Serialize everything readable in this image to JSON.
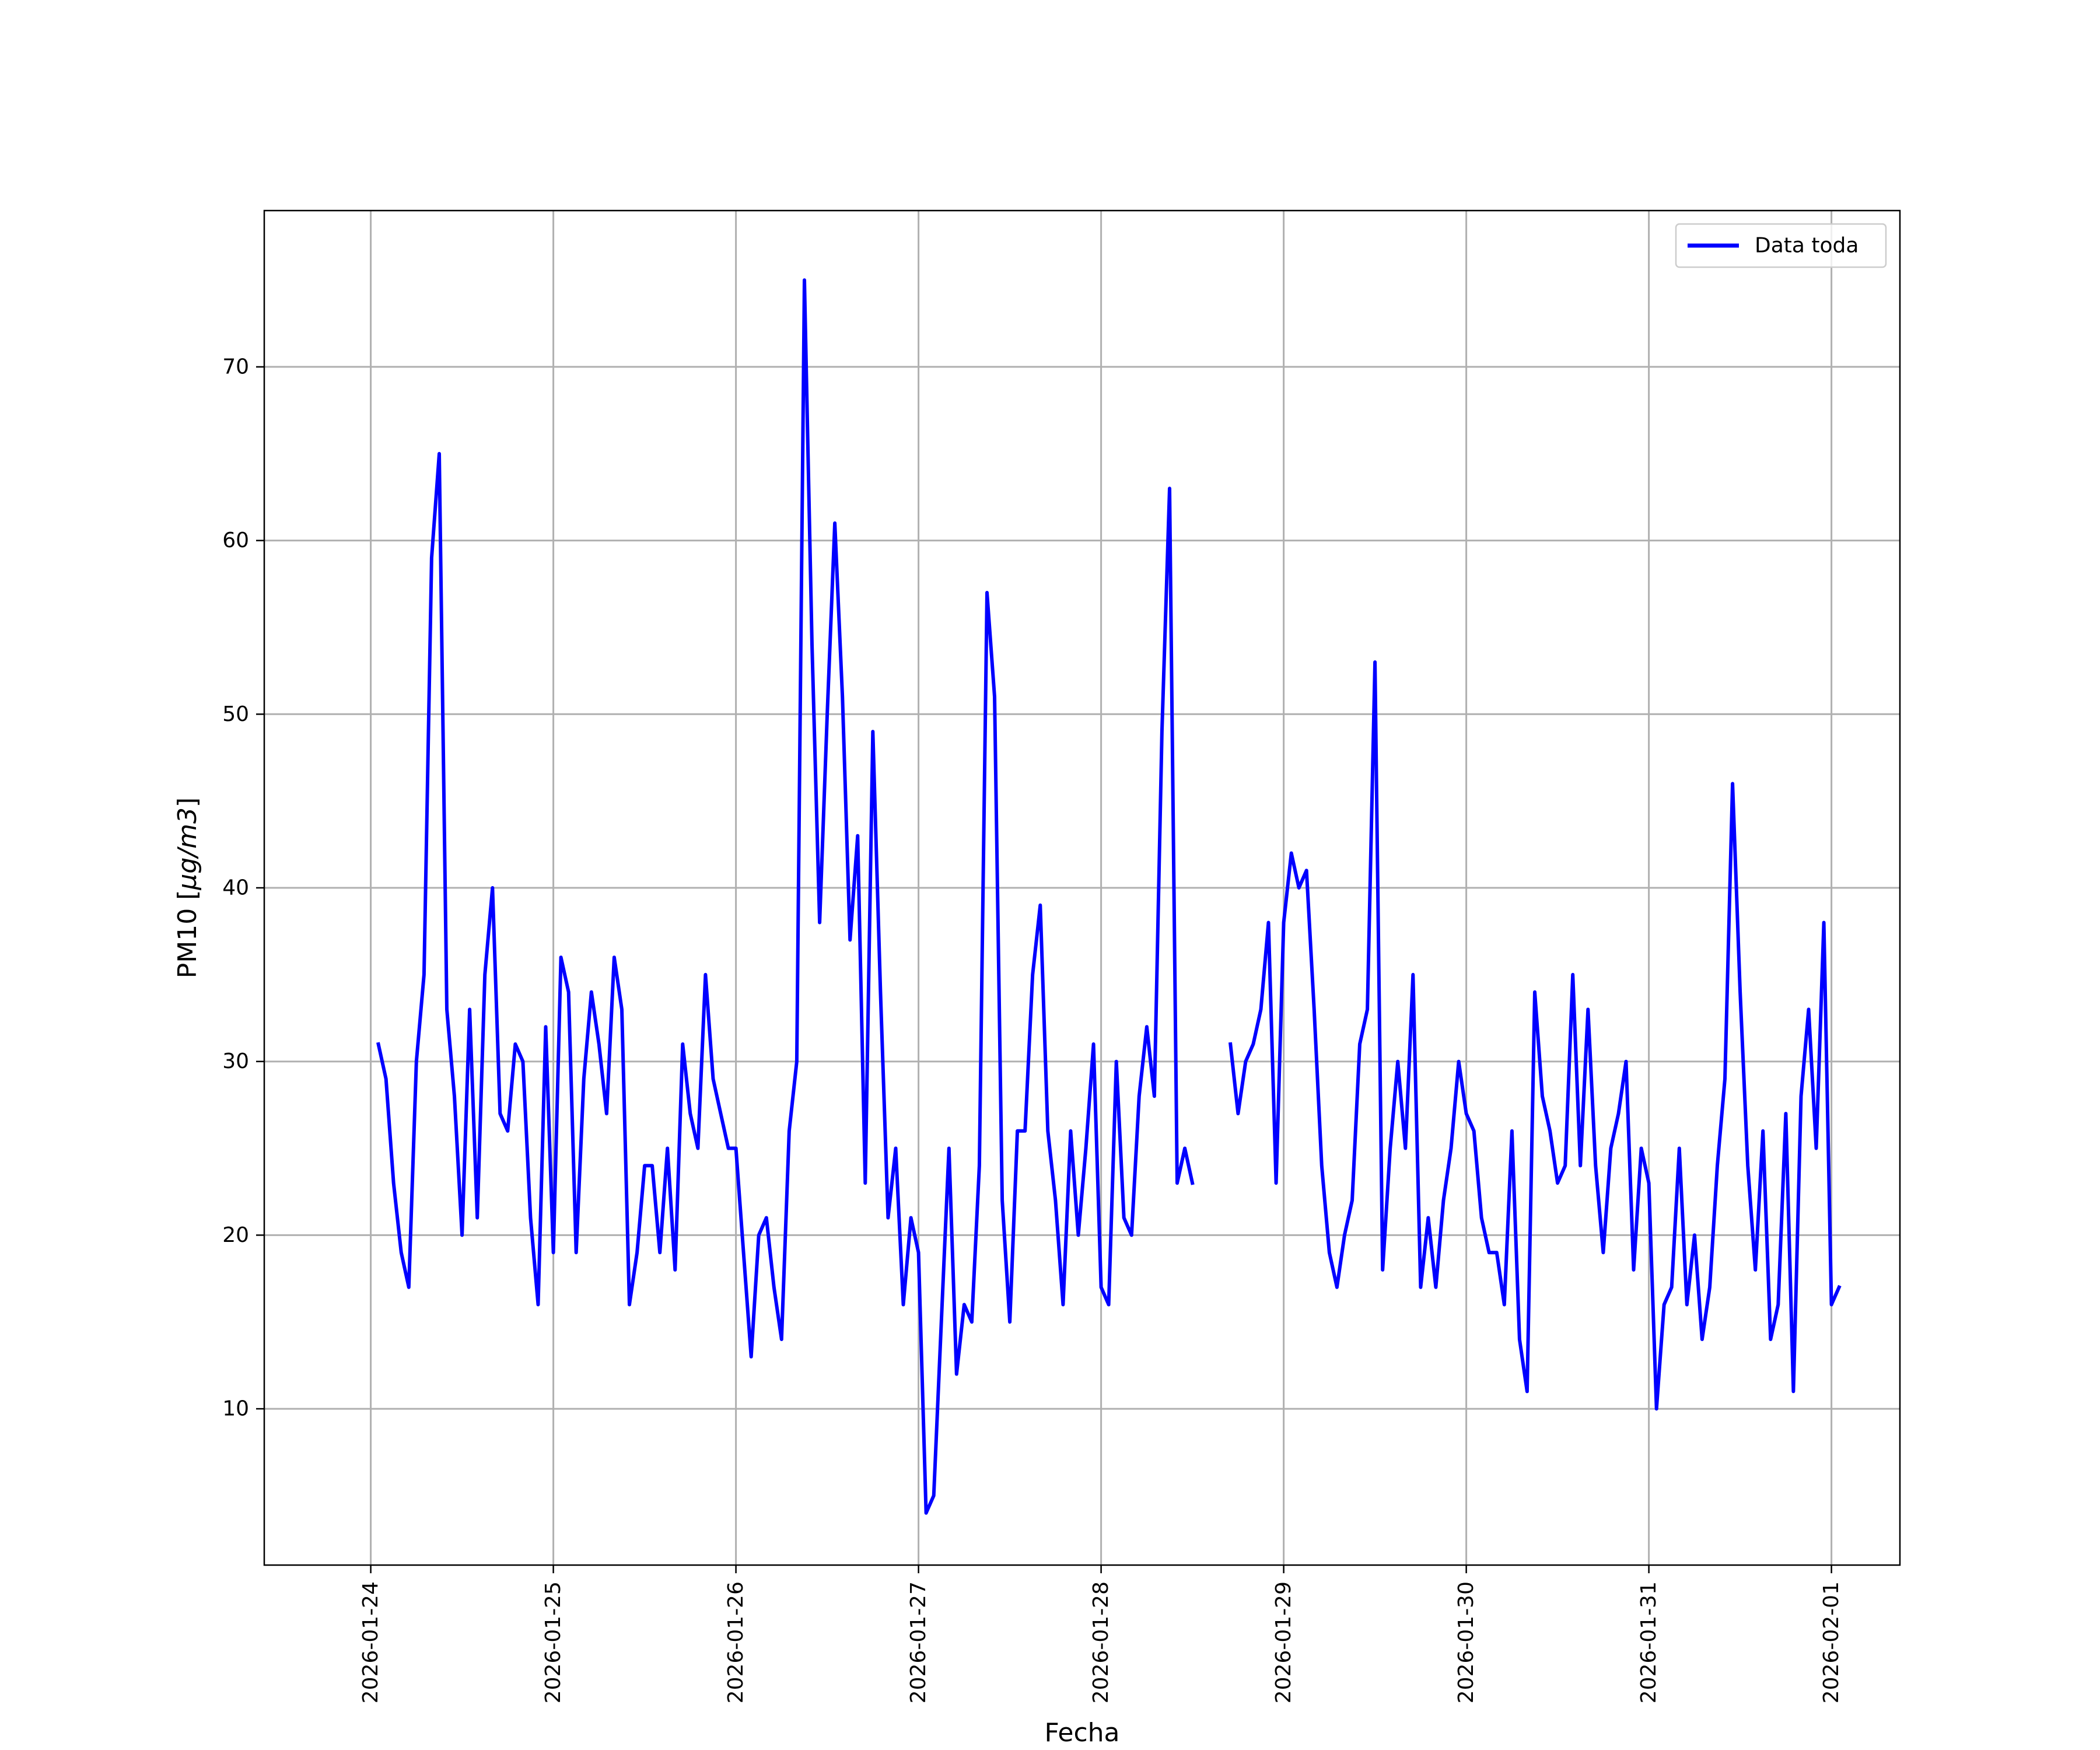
{
  "chart_data": {
    "type": "line",
    "xlabel": "Fecha",
    "ylabel_prefix": "PM10 [",
    "ylabel_unit": "μg/m3",
    "ylabel_suffix": "]",
    "x_ticks": [
      "2026-01-24",
      "2026-01-25",
      "2026-01-26",
      "2026-01-27",
      "2026-01-28",
      "2026-01-29",
      "2026-01-30",
      "2026-01-31",
      "2026-02-01"
    ],
    "y_ticks": [
      10,
      20,
      30,
      40,
      50,
      60,
      70
    ],
    "xlim": [
      "2026-01-23T10:00",
      "2026-02-01T09:00"
    ],
    "ylim": [
      1,
      79
    ],
    "grid": true,
    "legend_position": "top-right",
    "series": [
      {
        "name": "Data toda",
        "color": "#0000ff",
        "start": "2026-01-24T01:00",
        "step_hours": 1,
        "values": [
          31,
          29,
          23,
          19,
          17,
          30,
          35,
          59,
          65,
          33,
          28,
          20,
          33,
          21,
          35,
          40,
          27,
          26,
          31,
          30,
          21,
          16,
          32,
          19,
          36,
          34,
          19,
          29,
          34,
          31,
          27,
          36,
          33,
          16,
          19,
          24,
          24,
          19,
          25,
          18,
          31,
          27,
          25,
          35,
          29,
          27,
          25,
          25,
          19,
          13,
          20,
          21,
          17,
          14,
          26,
          30,
          75,
          54,
          38,
          50,
          61,
          51,
          37,
          43,
          23,
          49,
          34,
          21,
          25,
          16,
          21,
          19,
          4,
          5,
          15,
          25,
          12,
          16,
          15,
          24,
          57,
          51,
          22,
          15,
          26,
          26,
          35,
          39,
          26,
          22,
          16,
          26,
          20,
          25,
          31,
          17,
          16,
          30,
          21,
          20,
          28,
          32,
          28,
          49,
          63,
          23,
          25,
          23,
          null,
          null,
          null,
          null,
          31,
          27,
          30,
          31,
          33,
          38,
          23,
          38,
          42,
          40,
          41,
          33,
          24,
          19,
          17,
          20,
          22,
          31,
          33,
          53,
          18,
          25,
          30,
          25,
          35,
          17,
          21,
          17,
          22,
          25,
          30,
          27,
          26,
          21,
          19,
          19,
          16,
          26,
          14,
          11,
          34,
          28,
          26,
          23,
          24,
          35,
          24,
          33,
          24,
          19,
          25,
          27,
          30,
          18,
          25,
          23,
          10,
          16,
          17,
          25,
          16,
          20,
          14,
          17,
          24,
          29,
          46,
          34,
          24,
          18,
          26,
          14,
          16,
          27,
          11,
          28,
          33,
          25,
          38,
          16,
          17
        ]
      }
    ]
  }
}
